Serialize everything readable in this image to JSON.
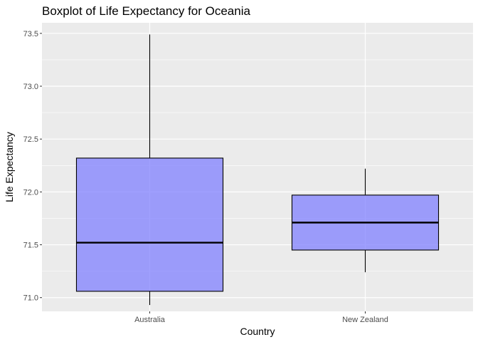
{
  "chart_data": {
    "type": "boxplot",
    "title": "Boxplot of Life Expectancy for Oceania",
    "xlabel": "Country",
    "ylabel": "Life Expectancy",
    "ylim": [
      70.87,
      73.6
    ],
    "yticks": [
      "71.0",
      "71.5",
      "72.0",
      "72.5",
      "73.0",
      "73.5"
    ],
    "y_tick_values": [
      71.0,
      71.5,
      72.0,
      72.5,
      73.0,
      73.5
    ],
    "categories": [
      "Australia",
      "New Zealand"
    ],
    "boxes": [
      {
        "category": "Australia",
        "min": 70.93,
        "q1": 71.06,
        "median": 71.52,
        "q3": 72.32,
        "max": 73.49
      },
      {
        "category": "New Zealand",
        "min": 71.24,
        "q1": 71.45,
        "median": 71.71,
        "q3": 71.97,
        "max": 72.22
      }
    ],
    "grid": true,
    "colors": {
      "box_fill": "#8080FF",
      "panel_bg": "#EBEBEB",
      "grid": "#FFFFFF"
    }
  }
}
